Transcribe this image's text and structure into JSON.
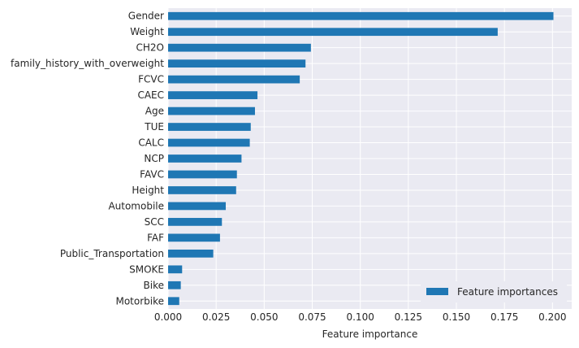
{
  "chart_data": {
    "type": "bar",
    "orientation": "horizontal",
    "categories": [
      "Gender",
      "Weight",
      "CH2O",
      "family_history_with_overweight",
      "FCVC",
      "CAEC",
      "Age",
      "TUE",
      "CALC",
      "NCP",
      "FAVC",
      "Height",
      "Automobile",
      "SCC",
      "FAF",
      "Public_Transportation",
      "SMOKE",
      "Bike",
      "Motorbike"
    ],
    "series": [
      {
        "name": "Feature importances",
        "color": "#1f77b4",
        "values": [
          0.2005,
          0.1715,
          0.0743,
          0.0715,
          0.0685,
          0.0465,
          0.0452,
          0.043,
          0.0425,
          0.0382,
          0.0358,
          0.0354,
          0.03,
          0.028,
          0.027,
          0.0235,
          0.0073,
          0.0066,
          0.0058
        ]
      }
    ],
    "xlabel": "Feature importance",
    "ylabel": "",
    "xlim": [
      0.0,
      0.21
    ],
    "xticks": [
      0.0,
      0.025,
      0.05,
      0.075,
      0.1,
      0.125,
      0.15,
      0.175,
      0.2
    ],
    "xtick_labels": [
      "0.000",
      "0.025",
      "0.050",
      "0.075",
      "0.100",
      "0.125",
      "0.150",
      "0.175",
      "0.200"
    ],
    "grid": true,
    "legend_position": "lower-right",
    "background_color": "#eaeaf2",
    "grid_color": "#ffffff"
  }
}
